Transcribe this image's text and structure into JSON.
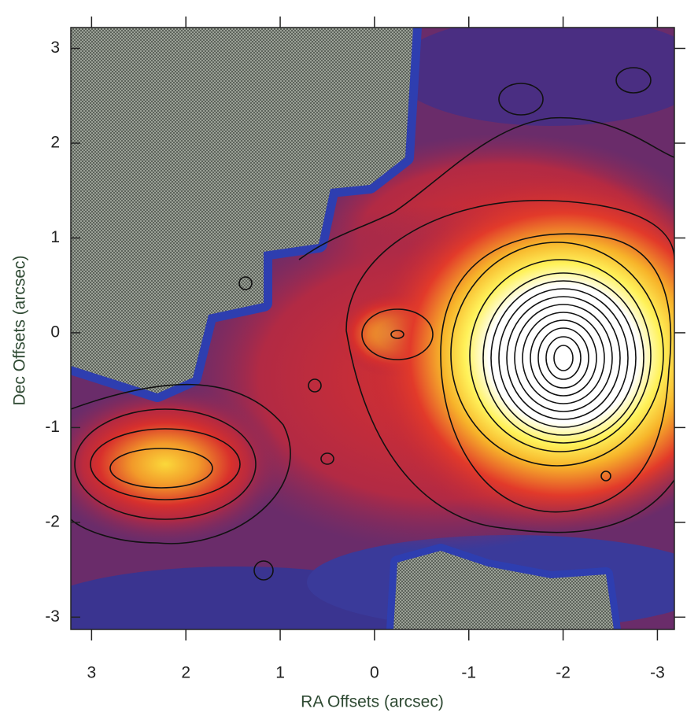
{
  "chart_data": {
    "type": "contour",
    "xlabel": "RA Offsets (arcsec)",
    "ylabel": "Dec Offsets (arcsec)",
    "xlim": [
      3.22,
      -3.18
    ],
    "ylim": [
      -3.13,
      3.22
    ],
    "xticks": [
      3,
      2,
      1,
      0,
      -1,
      -2,
      -3
    ],
    "yticks": [
      3,
      2,
      1,
      0,
      -1,
      -2,
      -3
    ]
  }
}
